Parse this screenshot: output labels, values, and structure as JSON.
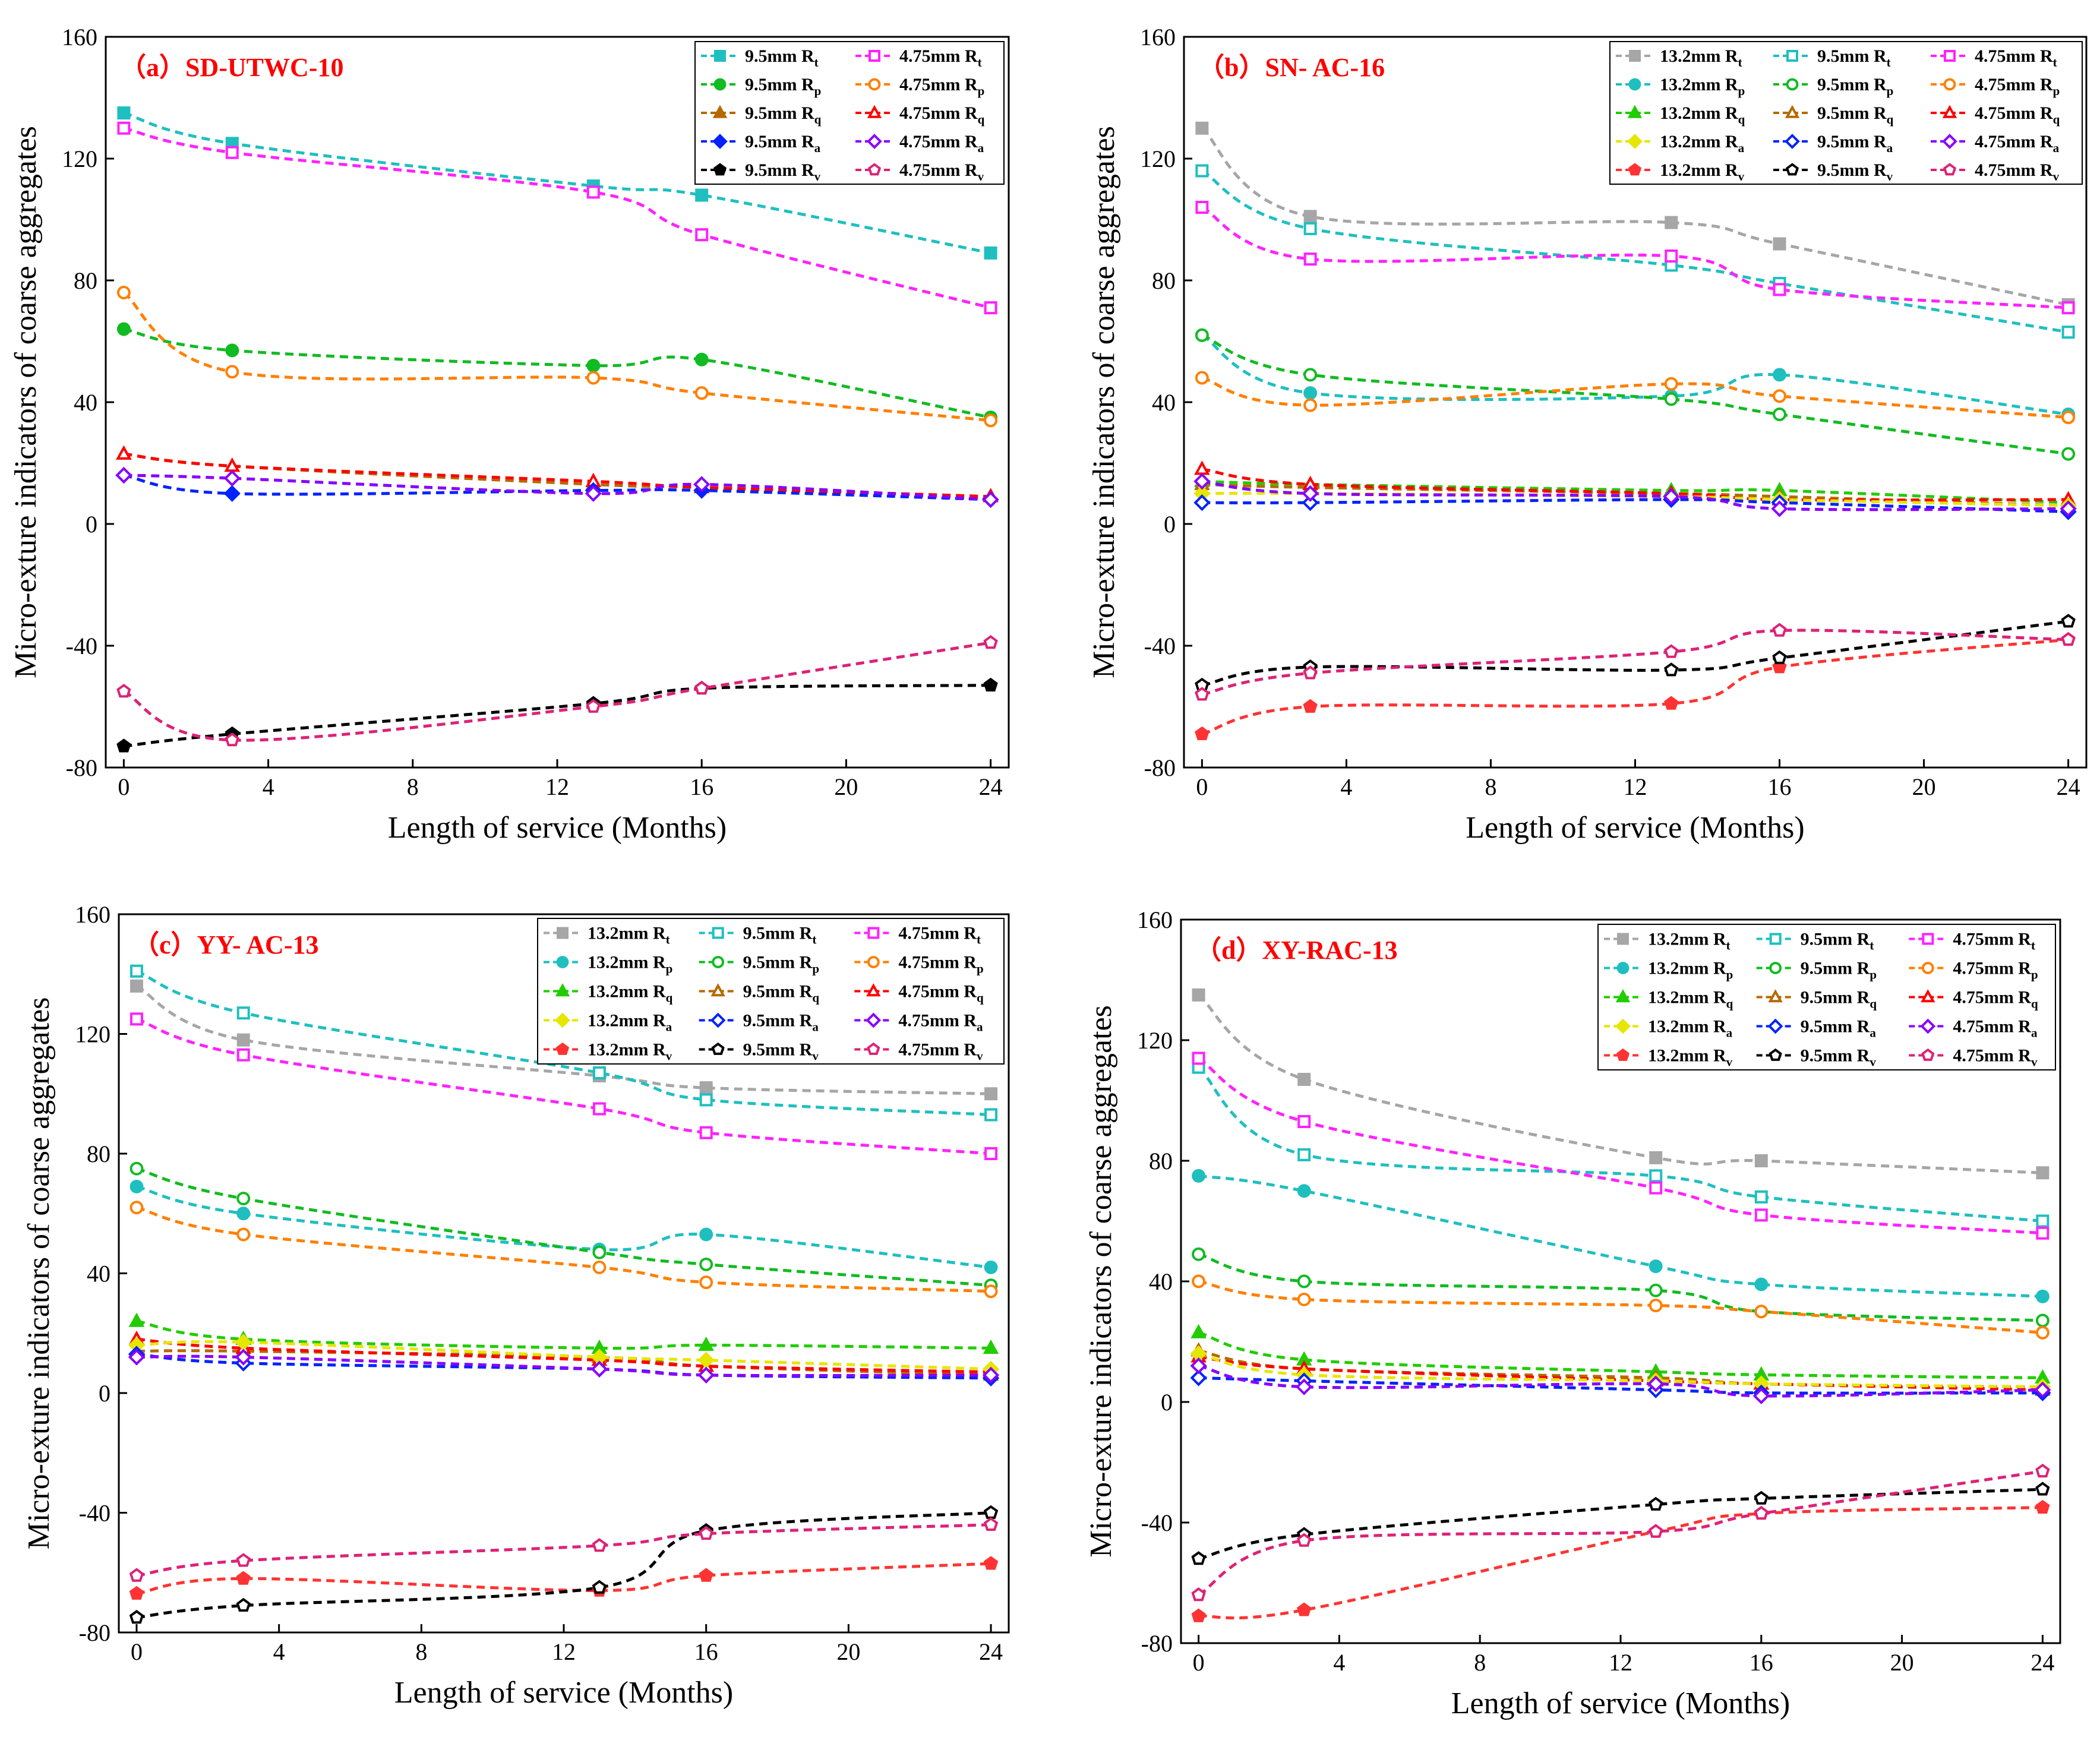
{
  "colors": {
    "t13": "#a6a6a6",
    "p13": "#1fbfbf",
    "q13": "#22cc00",
    "a13": "#e6e600",
    "v13": "#ff3333",
    "t95": "#1fbfbf",
    "p95": "#11bb22",
    "q95": "#b56a00",
    "a95": "#0022ff",
    "v95": "#000000",
    "t475": "#ff22ff",
    "p475": "#ff8000",
    "q475": "#ff0000",
    "a475": "#8800ff",
    "v475": "#dd2277"
  },
  "chart_data": [
    {
      "type": "line",
      "title": "（a）SD-UTWC-10",
      "xlabel": "Length of service (Months)",
      "ylabel": "Micro-exture indicators of coarse aggregates",
      "xlim": [
        -0.5,
        24.5
      ],
      "ylim": [
        -80,
        160
      ],
      "xticks": [
        0,
        4,
        8,
        12,
        16,
        20,
        24
      ],
      "yticks": [
        -80,
        -40,
        0,
        40,
        80,
        120,
        160
      ],
      "legend_columns": 2,
      "x": [
        0,
        3,
        13,
        16,
        24
      ],
      "series": [
        {
          "name": "9.5mm R",
          "sub": "t",
          "color": "t95",
          "marker": "square",
          "filled": true,
          "values": [
            135,
            125,
            111,
            108,
            89
          ]
        },
        {
          "name": "4.75mm R",
          "sub": "t",
          "color": "t475",
          "marker": "square",
          "filled": false,
          "values": [
            130,
            122,
            109,
            95,
            71
          ]
        },
        {
          "name": "9.5mm R",
          "sub": "p",
          "color": "p95",
          "marker": "circle",
          "filled": true,
          "values": [
            64,
            57,
            52,
            54,
            35
          ]
        },
        {
          "name": "4.75mm R",
          "sub": "p",
          "color": "p475",
          "marker": "circle",
          "filled": false,
          "values": [
            76,
            50,
            48,
            43,
            34
          ]
        },
        {
          "name": "9.5mm R",
          "sub": "q",
          "color": "q95",
          "marker": "triangle",
          "filled": true,
          "values": [
            23,
            19,
            13,
            12,
            9
          ]
        },
        {
          "name": "4.75mm R",
          "sub": "q",
          "color": "q475",
          "marker": "triangle",
          "filled": false,
          "values": [
            23,
            19,
            14,
            12,
            9
          ]
        },
        {
          "name": "9.5mm R",
          "sub": "a",
          "color": "a95",
          "marker": "diamond",
          "filled": true,
          "values": [
            16,
            10,
            11,
            11,
            8
          ]
        },
        {
          "name": "4.75mm R",
          "sub": "a",
          "color": "a475",
          "marker": "diamond",
          "filled": false,
          "values": [
            16,
            15,
            10,
            13,
            8
          ]
        },
        {
          "name": "9.5mm R",
          "sub": "v",
          "color": "v95",
          "marker": "pentagon",
          "filled": true,
          "values": [
            -73,
            -69,
            -59,
            -54,
            -53
          ]
        },
        {
          "name": "4.75mm R",
          "sub": "v",
          "color": "v475",
          "marker": "pentagon",
          "filled": false,
          "values": [
            -55,
            -71,
            -60,
            -54,
            -39
          ]
        }
      ]
    },
    {
      "type": "line",
      "title": "（b）SN- AC-16",
      "xlabel": "Length of service (Months)",
      "ylabel": "Micro-exture indicators of coarse aggregates",
      "xlim": [
        -0.5,
        24.5
      ],
      "ylim": [
        -80,
        160
      ],
      "xticks": [
        0,
        4,
        8,
        12,
        16,
        20,
        24
      ],
      "yticks": [
        -80,
        -40,
        0,
        40,
        80,
        120,
        160
      ],
      "legend_columns": 3,
      "x": [
        0,
        3,
        13,
        16,
        24
      ],
      "series": [
        {
          "name": "13.2mm R",
          "sub": "t",
          "color": "t13",
          "marker": "square",
          "filled": true,
          "values": [
            130,
            101,
            99,
            92,
            72
          ]
        },
        {
          "name": "9.5mm R",
          "sub": "t",
          "color": "t95",
          "marker": "square",
          "filled": false,
          "values": [
            116,
            97,
            85,
            79,
            63
          ]
        },
        {
          "name": "4.75mm R",
          "sub": "t",
          "color": "t475",
          "marker": "square",
          "filled": false,
          "values": [
            104,
            87,
            88,
            77,
            71
          ]
        },
        {
          "name": "13.2mm R",
          "sub": "p",
          "color": "p13",
          "marker": "circle",
          "filled": true,
          "values": [
            62,
            43,
            42,
            49,
            36
          ]
        },
        {
          "name": "9.5mm R",
          "sub": "p",
          "color": "p95",
          "marker": "circle",
          "filled": false,
          "values": [
            62,
            49,
            41,
            36,
            23
          ]
        },
        {
          "name": "4.75mm R",
          "sub": "p",
          "color": "p475",
          "marker": "circle",
          "filled": false,
          "values": [
            48,
            39,
            46,
            42,
            35
          ]
        },
        {
          "name": "13.2mm R",
          "sub": "q",
          "color": "q13",
          "marker": "triangle",
          "filled": true,
          "values": [
            14,
            13,
            11,
            11,
            7
          ]
        },
        {
          "name": "9.5mm R",
          "sub": "q",
          "color": "q95",
          "marker": "triangle",
          "filled": false,
          "values": [
            13,
            12,
            10,
            9,
            6
          ]
        },
        {
          "name": "4.75mm R",
          "sub": "q",
          "color": "q475",
          "marker": "triangle",
          "filled": false,
          "values": [
            18,
            13,
            10,
            8,
            8
          ]
        },
        {
          "name": "13.2mm R",
          "sub": "a",
          "color": "a13",
          "marker": "diamond",
          "filled": true,
          "values": [
            10,
            10,
            9,
            8,
            6
          ]
        },
        {
          "name": "9.5mm R",
          "sub": "a",
          "color": "a95",
          "marker": "diamond",
          "filled": false,
          "values": [
            7,
            7,
            8,
            7,
            4
          ]
        },
        {
          "name": "4.75mm R",
          "sub": "a",
          "color": "a475",
          "marker": "diamond",
          "filled": false,
          "values": [
            14,
            10,
            9,
            5,
            5
          ]
        },
        {
          "name": "13.2mm R",
          "sub": "v",
          "color": "v13",
          "marker": "pentagon",
          "filled": true,
          "values": [
            -69,
            -60,
            -59,
            -47,
            -38
          ]
        },
        {
          "name": "9.5mm R",
          "sub": "v",
          "color": "v95",
          "marker": "pentagon",
          "filled": false,
          "values": [
            -53,
            -47,
            -48,
            -44,
            -32
          ]
        },
        {
          "name": "4.75mm R",
          "sub": "v",
          "color": "v475",
          "marker": "pentagon",
          "filled": false,
          "values": [
            -56,
            -49,
            -42,
            -35,
            -38
          ]
        }
      ]
    },
    {
      "type": "line",
      "title": "（c）YY- AC-13",
      "xlabel": "Length of service (Months)",
      "ylabel": "Micro-exture indicators of coarse aggregates",
      "xlim": [
        -0.5,
        24.5
      ],
      "ylim": [
        -80,
        160
      ],
      "xticks": [
        0,
        4,
        8,
        12,
        16,
        20,
        24
      ],
      "yticks": [
        -80,
        -40,
        0,
        40,
        80,
        120,
        160
      ],
      "legend_columns": 3,
      "x": [
        0,
        3,
        13,
        16,
        24
      ],
      "series": [
        {
          "name": "13.2mm R",
          "sub": "t",
          "color": "t13",
          "marker": "square",
          "filled": true,
          "values": [
            136,
            118,
            106,
            102,
            100
          ]
        },
        {
          "name": "9.5mm R",
          "sub": "t",
          "color": "t95",
          "marker": "square",
          "filled": false,
          "values": [
            141,
            127,
            107,
            98,
            93
          ]
        },
        {
          "name": "4.75mm R",
          "sub": "t",
          "color": "t475",
          "marker": "square",
          "filled": false,
          "values": [
            125,
            113,
            95,
            87,
            80
          ]
        },
        {
          "name": "13.2mm R",
          "sub": "p",
          "color": "p13",
          "marker": "circle",
          "filled": true,
          "values": [
            69,
            60,
            48,
            53,
            42
          ]
        },
        {
          "name": "9.5mm R",
          "sub": "p",
          "color": "p95",
          "marker": "circle",
          "filled": false,
          "values": [
            75,
            65,
            47,
            43,
            36
          ]
        },
        {
          "name": "4.75mm R",
          "sub": "p",
          "color": "p475",
          "marker": "circle",
          "filled": false,
          "values": [
            62,
            53,
            42,
            37,
            34
          ]
        },
        {
          "name": "13.2mm R",
          "sub": "q",
          "color": "q13",
          "marker": "triangle",
          "filled": true,
          "values": [
            24,
            18,
            15,
            16,
            15
          ]
        },
        {
          "name": "9.5mm R",
          "sub": "q",
          "color": "q95",
          "marker": "triangle",
          "filled": false,
          "values": [
            14,
            14,
            12,
            9,
            6
          ]
        },
        {
          "name": "4.75mm R",
          "sub": "q",
          "color": "q475",
          "marker": "triangle",
          "filled": false,
          "values": [
            18,
            15,
            11,
            9,
            7
          ]
        },
        {
          "name": "13.2mm R",
          "sub": "a",
          "color": "a13",
          "marker": "diamond",
          "filled": true,
          "values": [
            16,
            17,
            12,
            11,
            8
          ]
        },
        {
          "name": "9.5mm R",
          "sub": "a",
          "color": "a95",
          "marker": "diamond",
          "filled": false,
          "values": [
            13,
            10,
            8,
            6,
            5
          ]
        },
        {
          "name": "4.75mm R",
          "sub": "a",
          "color": "a475",
          "marker": "diamond",
          "filled": false,
          "values": [
            12,
            12,
            8,
            6,
            6
          ]
        },
        {
          "name": "13.2mm R",
          "sub": "v",
          "color": "v13",
          "marker": "pentagon",
          "filled": true,
          "values": [
            -67,
            -62,
            -66,
            -61,
            -57
          ]
        },
        {
          "name": "9.5mm R",
          "sub": "v",
          "color": "v95",
          "marker": "pentagon",
          "filled": false,
          "values": [
            -75,
            -71,
            -65,
            -46,
            -40
          ]
        },
        {
          "name": "4.75mm R",
          "sub": "v",
          "color": "v475",
          "marker": "pentagon",
          "filled": false,
          "values": [
            -61,
            -56,
            -51,
            -47,
            -44
          ]
        }
      ]
    },
    {
      "type": "line",
      "title": "（d）XY-RAC-13",
      "xlabel": "Length of service (Months)",
      "ylabel": "Micro-exture indicators of coarse aggregates",
      "xlim": [
        -0.5,
        24.5
      ],
      "ylim": [
        -80,
        160
      ],
      "xticks": [
        0,
        4,
        8,
        12,
        16,
        20,
        24
      ],
      "yticks": [
        -80,
        -40,
        0,
        40,
        80,
        120,
        160
      ],
      "legend_columns": 3,
      "x": [
        0,
        3,
        13,
        16,
        24
      ],
      "series": [
        {
          "name": "13.2mm R",
          "sub": "t",
          "color": "t13",
          "marker": "square",
          "filled": true,
          "values": [
            135,
            107,
            81,
            80,
            76
          ]
        },
        {
          "name": "9.5mm R",
          "sub": "t",
          "color": "t95",
          "marker": "square",
          "filled": false,
          "values": [
            111,
            82,
            75,
            68,
            60
          ]
        },
        {
          "name": "4.75mm R",
          "sub": "t",
          "color": "t475",
          "marker": "square",
          "filled": false,
          "values": [
            114,
            93,
            71,
            62,
            56
          ]
        },
        {
          "name": "13.2mm R",
          "sub": "p",
          "color": "p13",
          "marker": "circle",
          "filled": true,
          "values": [
            75,
            70,
            45,
            39,
            35
          ]
        },
        {
          "name": "9.5mm R",
          "sub": "p",
          "color": "p95",
          "marker": "circle",
          "filled": false,
          "values": [
            49,
            40,
            37,
            30,
            27
          ]
        },
        {
          "name": "4.75mm R",
          "sub": "p",
          "color": "p475",
          "marker": "circle",
          "filled": false,
          "values": [
            40,
            34,
            32,
            30,
            23
          ]
        },
        {
          "name": "13.2mm R",
          "sub": "q",
          "color": "q13",
          "marker": "triangle",
          "filled": true,
          "values": [
            23,
            14,
            10,
            9,
            8
          ]
        },
        {
          "name": "9.5mm R",
          "sub": "q",
          "color": "q95",
          "marker": "triangle",
          "filled": false,
          "values": [
            17,
            11,
            8,
            6,
            5
          ]
        },
        {
          "name": "4.75mm R",
          "sub": "q",
          "color": "q475",
          "marker": "triangle",
          "filled": false,
          "values": [
            15,
            11,
            7,
            6,
            4
          ]
        },
        {
          "name": "13.2mm R",
          "sub": "a",
          "color": "a13",
          "marker": "diamond",
          "filled": true,
          "values": [
            16,
            9,
            7,
            6,
            5
          ]
        },
        {
          "name": "9.5mm R",
          "sub": "a",
          "color": "a95",
          "marker": "diamond",
          "filled": false,
          "values": [
            8,
            7,
            4,
            3,
            3
          ]
        },
        {
          "name": "4.75mm R",
          "sub": "a",
          "color": "a475",
          "marker": "diamond",
          "filled": false,
          "values": [
            12,
            5,
            6,
            2,
            4
          ]
        },
        {
          "name": "13.2mm R",
          "sub": "v",
          "color": "v13",
          "marker": "pentagon",
          "filled": true,
          "values": [
            -71,
            -69,
            -43,
            -37,
            -35
          ]
        },
        {
          "name": "9.5mm R",
          "sub": "v",
          "color": "v95",
          "marker": "pentagon",
          "filled": false,
          "values": [
            -52,
            -44,
            -34,
            -32,
            -29
          ]
        },
        {
          "name": "4.75mm R",
          "sub": "v",
          "color": "v475",
          "marker": "pentagon",
          "filled": false,
          "values": [
            -64,
            -46,
            -43,
            -37,
            -23
          ]
        }
      ]
    }
  ]
}
